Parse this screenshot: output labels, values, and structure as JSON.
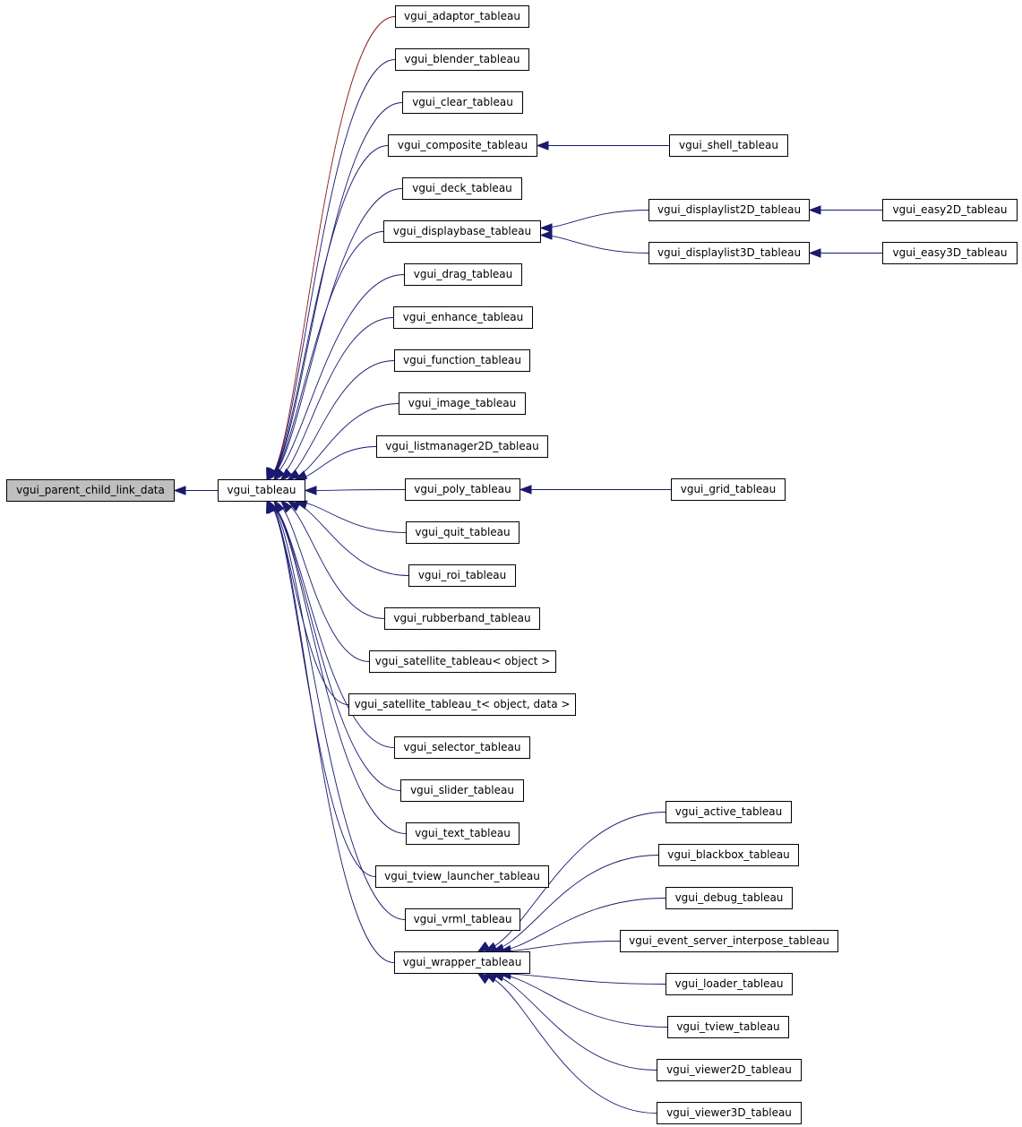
{
  "colors": {
    "edge": "#191970",
    "highlight_edge": "#8b1a1a",
    "root_fill": "#bfbfbf",
    "node_fill": "#ffffff",
    "node_border": "#000000"
  },
  "nodes": {
    "root": {
      "label": "vgui_parent_child_link_data"
    },
    "tableau": {
      "label": "vgui_tableau"
    },
    "adaptor": {
      "label": "vgui_adaptor_tableau"
    },
    "blender": {
      "label": "vgui_blender_tableau"
    },
    "clear": {
      "label": "vgui_clear_tableau"
    },
    "composite": {
      "label": "vgui_composite_tableau"
    },
    "deck": {
      "label": "vgui_deck_tableau"
    },
    "displaybase": {
      "label": "vgui_displaybase_tableau"
    },
    "drag": {
      "label": "vgui_drag_tableau"
    },
    "enhance": {
      "label": "vgui_enhance_tableau"
    },
    "function": {
      "label": "vgui_function_tableau"
    },
    "image": {
      "label": "vgui_image_tableau"
    },
    "listmanager2d": {
      "label": "vgui_listmanager2D_tableau"
    },
    "poly": {
      "label": "vgui_poly_tableau"
    },
    "quit": {
      "label": "vgui_quit_tableau"
    },
    "roi": {
      "label": "vgui_roi_tableau"
    },
    "rubberband": {
      "label": "vgui_rubberband_tableau"
    },
    "satellite": {
      "label": "vgui_satellite_tableau< object >"
    },
    "satellite_t": {
      "label": "vgui_satellite_tableau_t< object, data >"
    },
    "selector": {
      "label": "vgui_selector_tableau"
    },
    "slider": {
      "label": "vgui_slider_tableau"
    },
    "text": {
      "label": "vgui_text_tableau"
    },
    "tview_launcher": {
      "label": "vgui_tview_launcher_tableau"
    },
    "vrml": {
      "label": "vgui_vrml_tableau"
    },
    "wrapper": {
      "label": "vgui_wrapper_tableau"
    },
    "shell": {
      "label": "vgui_shell_tableau"
    },
    "displaylist2d": {
      "label": "vgui_displaylist2D_tableau"
    },
    "displaylist3d": {
      "label": "vgui_displaylist3D_tableau"
    },
    "easy2d": {
      "label": "vgui_easy2D_tableau"
    },
    "easy3d": {
      "label": "vgui_easy3D_tableau"
    },
    "grid": {
      "label": "vgui_grid_tableau"
    },
    "active": {
      "label": "vgui_active_tableau"
    },
    "blackbox": {
      "label": "vgui_blackbox_tableau"
    },
    "debug": {
      "label": "vgui_debug_tableau"
    },
    "event_server_interpose": {
      "label": "vgui_event_server_interpose_tableau"
    },
    "loader": {
      "label": "vgui_loader_tableau"
    },
    "tview": {
      "label": "vgui_tview_tableau"
    },
    "viewer2d": {
      "label": "vgui_viewer2D_tableau"
    },
    "viewer3d": {
      "label": "vgui_viewer3D_tableau"
    }
  },
  "edges": [
    {
      "from": "tableau",
      "to": "root"
    },
    {
      "from": "adaptor",
      "to": "tableau",
      "highlight": true
    },
    {
      "from": "blender",
      "to": "tableau"
    },
    {
      "from": "clear",
      "to": "tableau"
    },
    {
      "from": "composite",
      "to": "tableau"
    },
    {
      "from": "deck",
      "to": "tableau"
    },
    {
      "from": "displaybase",
      "to": "tableau"
    },
    {
      "from": "drag",
      "to": "tableau"
    },
    {
      "from": "enhance",
      "to": "tableau"
    },
    {
      "from": "function",
      "to": "tableau"
    },
    {
      "from": "image",
      "to": "tableau"
    },
    {
      "from": "listmanager2d",
      "to": "tableau"
    },
    {
      "from": "poly",
      "to": "tableau"
    },
    {
      "from": "quit",
      "to": "tableau"
    },
    {
      "from": "roi",
      "to": "tableau"
    },
    {
      "from": "rubberband",
      "to": "tableau"
    },
    {
      "from": "satellite",
      "to": "tableau"
    },
    {
      "from": "satellite_t",
      "to": "tableau"
    },
    {
      "from": "selector",
      "to": "tableau"
    },
    {
      "from": "slider",
      "to": "tableau"
    },
    {
      "from": "text",
      "to": "tableau"
    },
    {
      "from": "tview_launcher",
      "to": "tableau"
    },
    {
      "from": "vrml",
      "to": "tableau"
    },
    {
      "from": "wrapper",
      "to": "tableau"
    },
    {
      "from": "shell",
      "to": "composite"
    },
    {
      "from": "displaylist2d",
      "to": "displaybase"
    },
    {
      "from": "displaylist3d",
      "to": "displaybase"
    },
    {
      "from": "easy2d",
      "to": "displaylist2d"
    },
    {
      "from": "easy3d",
      "to": "displaylist3d"
    },
    {
      "from": "grid",
      "to": "poly"
    },
    {
      "from": "active",
      "to": "wrapper"
    },
    {
      "from": "blackbox",
      "to": "wrapper"
    },
    {
      "from": "debug",
      "to": "wrapper"
    },
    {
      "from": "event_server_interpose",
      "to": "wrapper"
    },
    {
      "from": "loader",
      "to": "wrapper"
    },
    {
      "from": "tview",
      "to": "wrapper"
    },
    {
      "from": "viewer2d",
      "to": "wrapper"
    },
    {
      "from": "viewer3d",
      "to": "wrapper"
    }
  ]
}
